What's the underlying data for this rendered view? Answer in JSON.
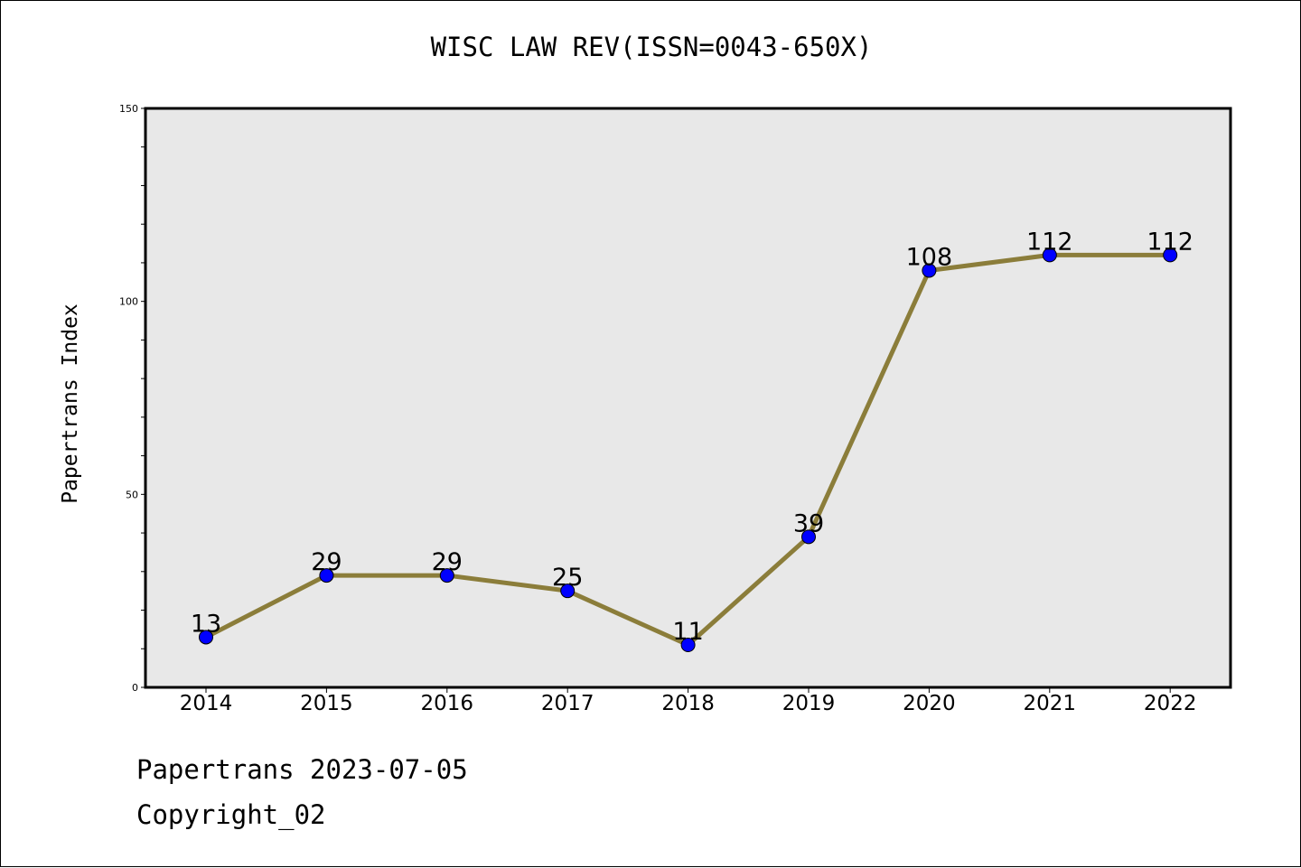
{
  "chart_data": {
    "type": "line",
    "title": "WISC LAW REV(ISSN=0043-650X)",
    "ylabel": "Papertrans Index",
    "xlabel": "",
    "categories": [
      "2014",
      "2015",
      "2016",
      "2017",
      "2018",
      "2019",
      "2020",
      "2021",
      "2022"
    ],
    "values": [
      13,
      29,
      29,
      25,
      11,
      39,
      108,
      112,
      112
    ],
    "ylim": [
      0,
      150
    ],
    "yticks": [
      0,
      50,
      100,
      150
    ],
    "grid": false,
    "legend": "none",
    "colors": {
      "line": "#8b7d3a",
      "marker": "#0000ff",
      "plot_bg": "#e8e8e8"
    }
  },
  "footer": {
    "date_line": "Papertrans 2023-07-05",
    "copyright": "Copyright_02"
  }
}
